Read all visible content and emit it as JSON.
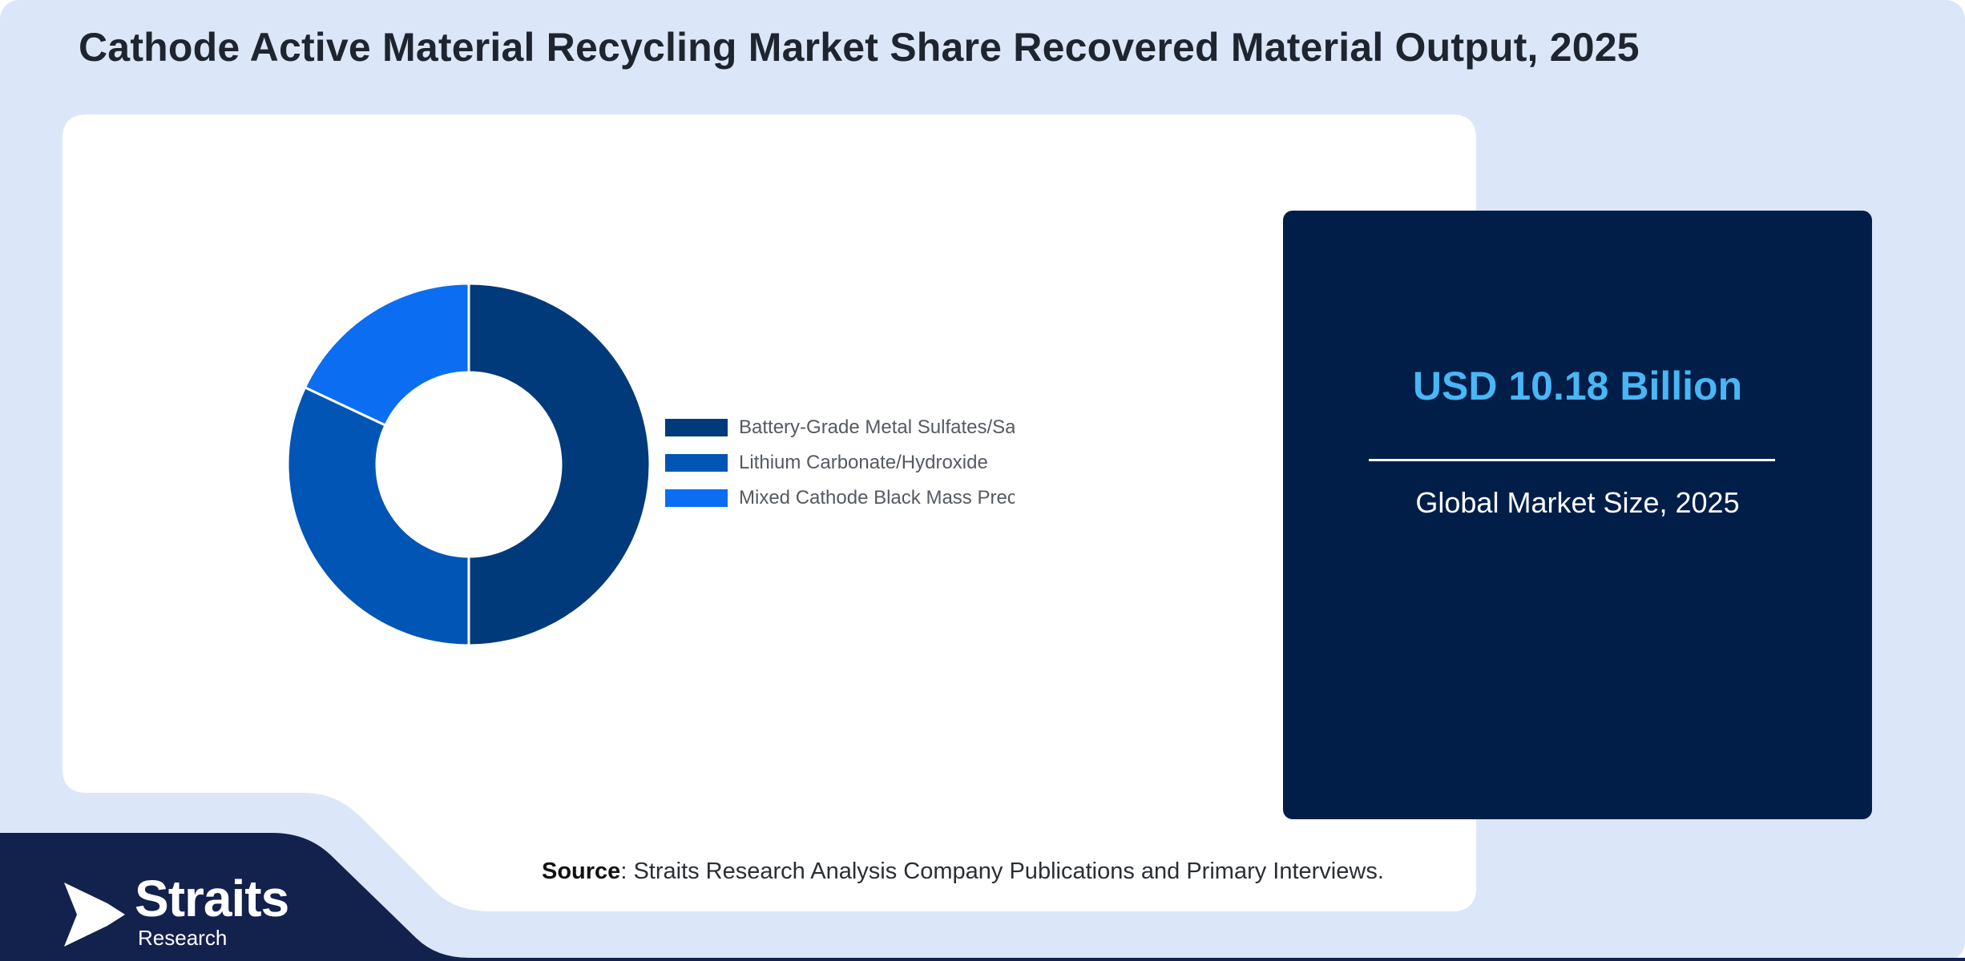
{
  "title": "Cathode Active Material Recycling Market Share Recovered Material Output, 2025",
  "chart_data": {
    "type": "pie",
    "variant": "donut",
    "categories": [
      "Battery-Grade Metal Sulfates/Salts",
      "Lithium Carbonate/Hydroxide",
      "Mixed Cathode Black Mass Precursor"
    ],
    "values": [
      50,
      32,
      18
    ],
    "colors": [
      "#003a7a",
      "#0055b5",
      "#0a6df2"
    ],
    "legend_position": "right"
  },
  "stat_card": {
    "value": "USD 10.18 Billion",
    "caption": "Global Market Size, 2025"
  },
  "source": {
    "label": "Source",
    "text": ": Straits Research Analysis Company Publications and Primary Interviews."
  },
  "logo": {
    "name": "Straits",
    "subtitle": "Research"
  },
  "colors": {
    "background": "#dbe7f8",
    "dark_navy": "#13214d",
    "card_navy": "#001e48",
    "accent_blue": "#49b6f5"
  }
}
